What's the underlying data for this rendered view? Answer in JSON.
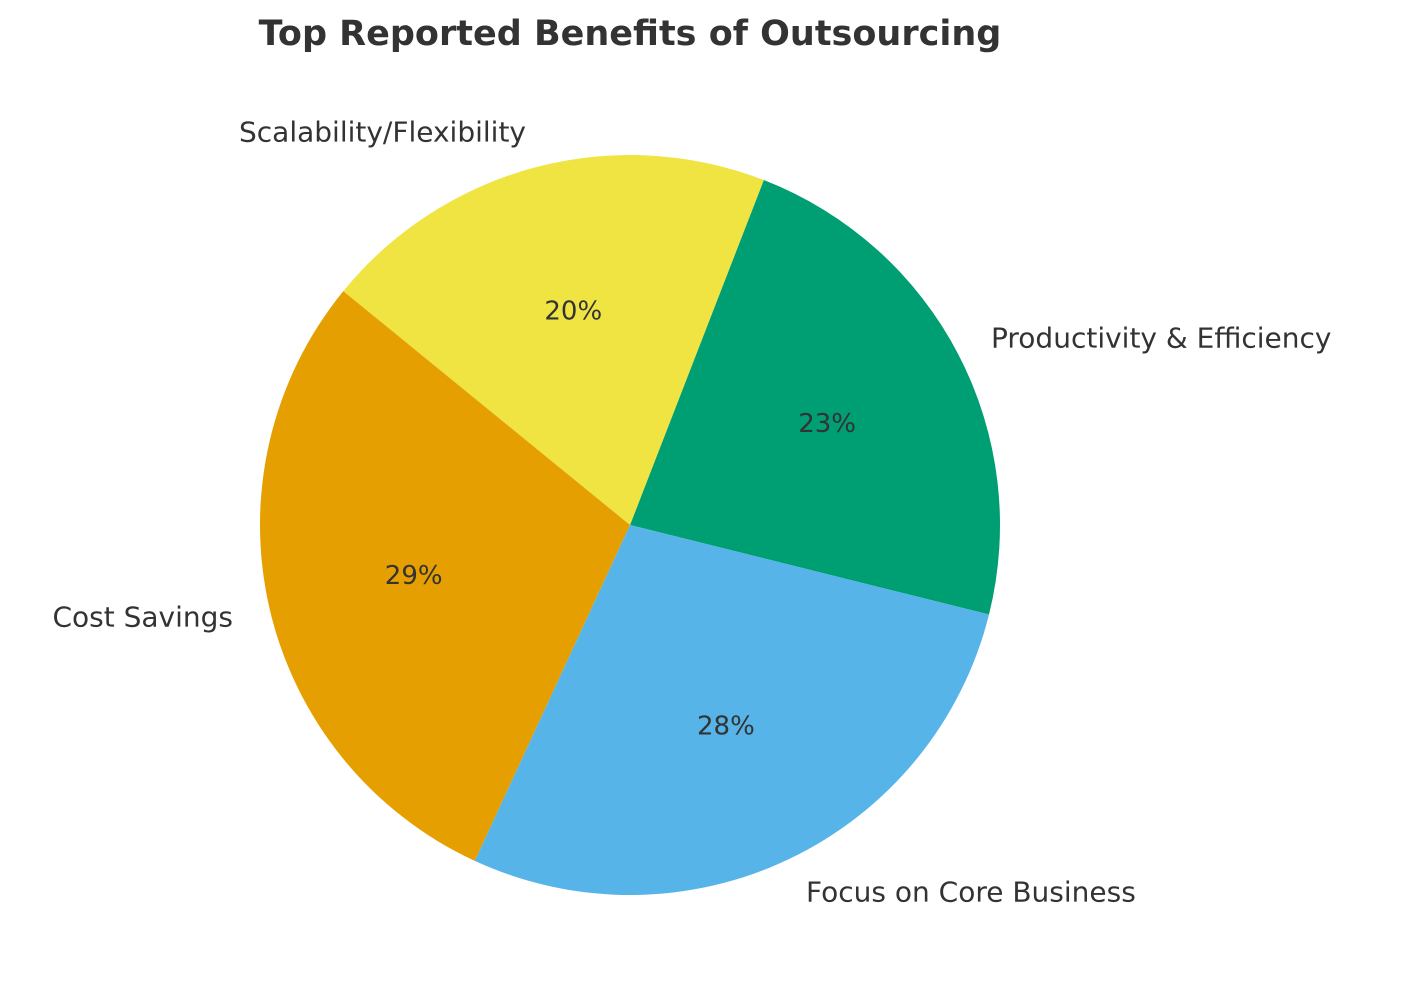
{
  "title": "Top Reported Benefits of Outsourcing",
  "chart_data": {
    "type": "pie",
    "title": "Top Reported Benefits of Outsourcing",
    "labels": [
      "Productivity & Efficiency",
      "Scalability/Flexibility",
      "Cost Savings",
      "Focus on Core Business"
    ],
    "values": [
      23,
      20,
      29,
      28
    ],
    "percent_labels": [
      "23%",
      "20%",
      "29%",
      "28%"
    ],
    "colors": [
      "#009E73",
      "#F0E442",
      "#E69F00",
      "#56B4E9"
    ],
    "text_color": "#333333",
    "background_color": "#ffffff",
    "start_angle_deg": -14,
    "direction": "counterclockwise",
    "label_distance": 1.1,
    "pct_distance": 0.6,
    "legend": "none",
    "unit": "%"
  }
}
